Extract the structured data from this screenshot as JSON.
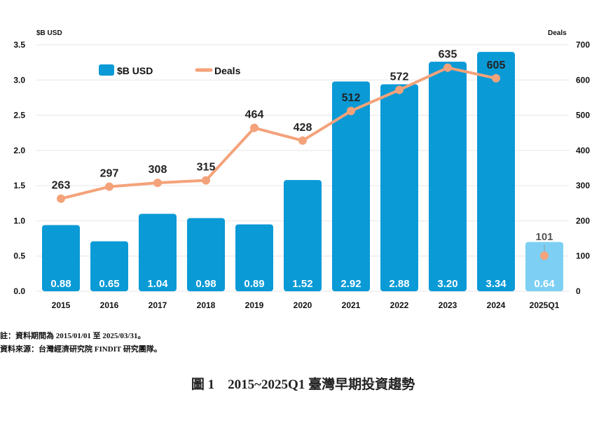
{
  "chart_data": {
    "type": "bar+line",
    "categories": [
      "2015",
      "2016",
      "2017",
      "2018",
      "2019",
      "2020",
      "2021",
      "2022",
      "2023",
      "2024",
      "2025Q1"
    ],
    "series": [
      {
        "name": "$B USD",
        "type": "bar",
        "axis": "left",
        "values": [
          0.88,
          0.65,
          1.04,
          0.98,
          0.89,
          1.52,
          2.92,
          2.88,
          3.2,
          3.34,
          0.64
        ],
        "color": "#0a9ad6",
        "highlight_last_color": "#7dd0f4"
      },
      {
        "name": "Deals",
        "type": "line",
        "axis": "right",
        "values": [
          263,
          297,
          308,
          315,
          464,
          428,
          512,
          572,
          635,
          605,
          101
        ],
        "color": "#f4a27a"
      }
    ],
    "left_axis": {
      "label": "$B USD",
      "range": [
        0,
        3.5
      ],
      "ticks": [
        "0.0",
        "0.5",
        "1.0",
        "1.5",
        "2.0",
        "2.5",
        "3.0",
        "3.5"
      ]
    },
    "right_axis": {
      "label": "Deals",
      "range": [
        0,
        700
      ],
      "ticks": [
        "0",
        "100",
        "200",
        "300",
        "400",
        "500",
        "600",
        "700"
      ]
    },
    "grid": true,
    "legend": "top-left"
  },
  "notes": {
    "period": "註：資料期間為 2015/01/01 至 2025/03/31。",
    "source": "資料來源：台灣經濟研究院 FINDIT 研究團隊。"
  },
  "caption": "圖 1　2015~2025Q1 臺灣早期投資趨勢"
}
